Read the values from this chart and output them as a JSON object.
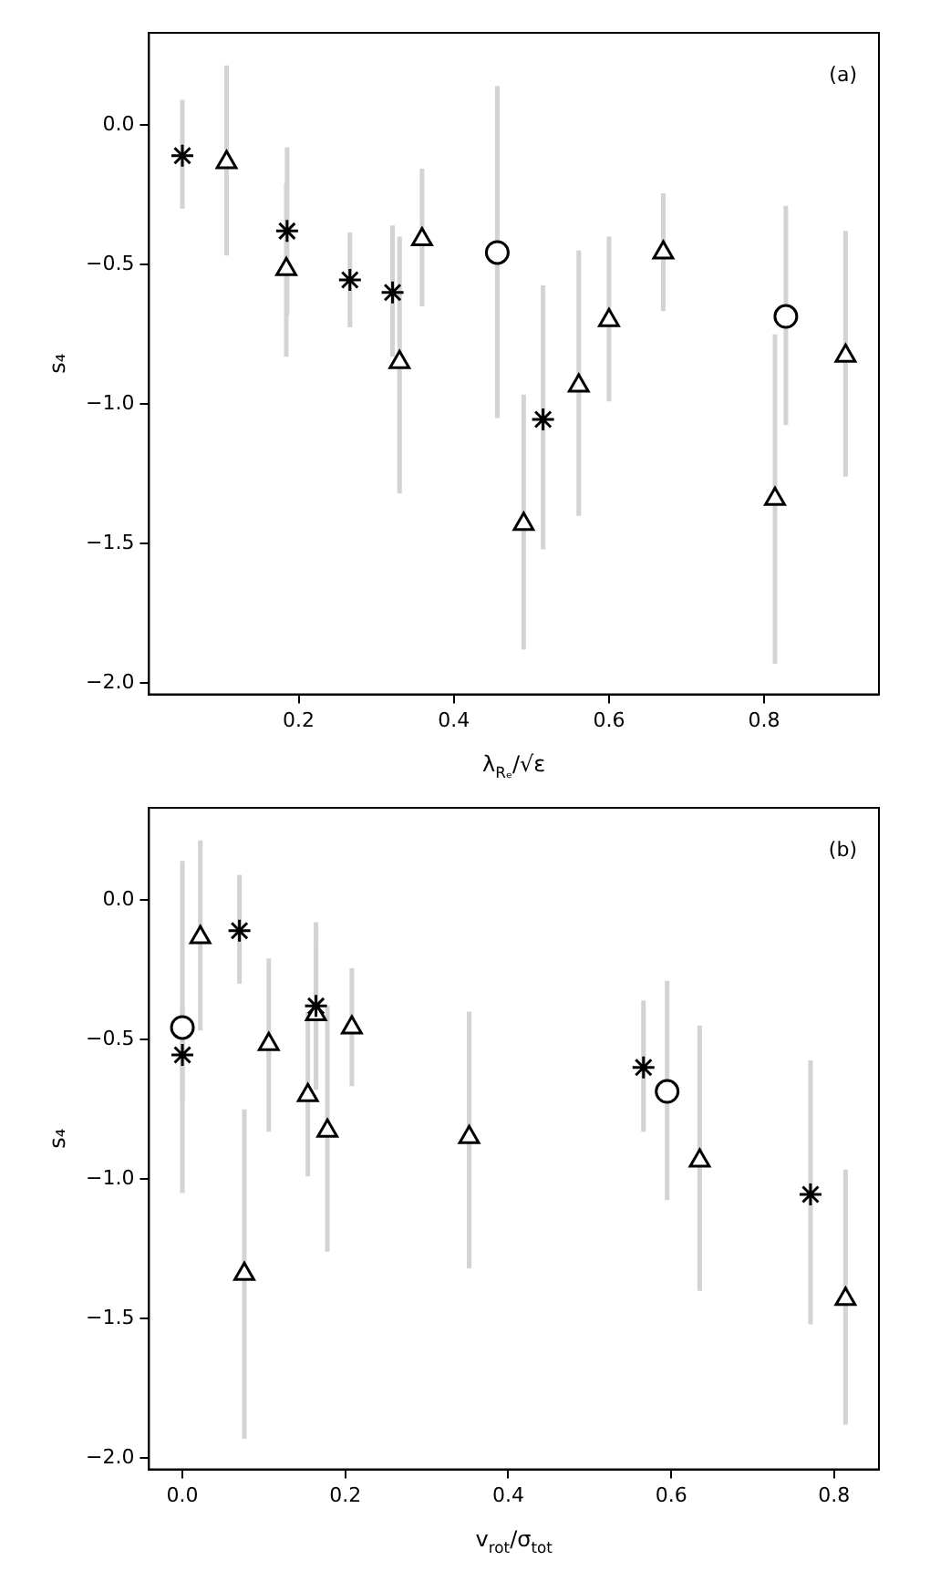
{
  "chart_data": [
    {
      "type": "scatter",
      "xlabel": "λ$_{Rₑ}$/√ε",
      "ylabel": "s₄",
      "annotations": [
        "(a)"
      ],
      "xlim": [
        0.007,
        0.948
      ],
      "xticks": [
        0.2,
        0.4,
        0.6,
        0.8
      ],
      "ylim": [
        -2.04,
        0.33
      ],
      "yticks": [
        {
          "value": -2.0,
          "label": "−2.0"
        },
        {
          "value": -1.5,
          "label": "−1.5"
        },
        {
          "value": -1.0,
          "label": "−1.0"
        },
        {
          "value": -0.5,
          "label": "−0.5"
        },
        {
          "value": 0.0,
          "label": "0.0"
        }
      ],
      "grid": false,
      "legend": false,
      "series": [
        {
          "marker": "cross",
          "color": "#000000",
          "x": [
            0.05,
            0.185,
            0.266,
            0.321,
            0.515
          ],
          "values": [
            -0.11,
            -0.38,
            -0.555,
            -0.6,
            -1.055
          ],
          "errors": [
            [
              -0.3,
              0.09
            ],
            [
              -0.68,
              -0.08
            ],
            [
              -0.725,
              -0.385
            ],
            [
              -0.83,
              -0.36
            ],
            [
              -1.52,
              -0.575
            ]
          ]
        },
        {
          "marker": "triangle",
          "color": "#000000",
          "x": [
            0.107,
            0.184,
            0.33,
            0.359,
            0.49,
            0.561,
            0.6,
            0.67,
            0.814,
            0.905
          ],
          "values": [
            -0.134,
            -0.517,
            -0.85,
            -0.41,
            -1.43,
            -0.934,
            -0.7,
            -0.457,
            -1.34,
            -0.827
          ],
          "errors": [
            [
              -0.468,
              0.213
            ],
            [
              -0.83,
              -0.21
            ],
            [
              -1.32,
              -0.4
            ],
            [
              -0.65,
              -0.157
            ],
            [
              -1.88,
              -0.966
            ],
            [
              -1.4,
              -0.45
            ],
            [
              -0.99,
              -0.4
            ],
            [
              -0.667,
              -0.245
            ],
            [
              -1.93,
              -0.75
            ],
            [
              -1.26,
              -0.38
            ]
          ]
        },
        {
          "marker": "circle",
          "color": "#000000",
          "x": [
            0.456,
            0.828
          ],
          "values": [
            -0.457,
            -0.686
          ],
          "errors": [
            [
              -1.05,
              0.14
            ],
            [
              -1.075,
              -0.29
            ]
          ]
        }
      ]
    },
    {
      "type": "scatter",
      "xlabel": "v$_{rot}$/σ$_{tot}$",
      "ylabel": "s₄",
      "annotations": [
        "(b)"
      ],
      "xlim": [
        -0.041,
        0.855
      ],
      "xticks": [
        {
          "value": 0.0,
          "label": "0.0"
        },
        0.2,
        0.4,
        0.6,
        0.8
      ],
      "ylim": [
        -2.04,
        0.33
      ],
      "yticks": [
        {
          "value": -2.0,
          "label": "−2.0"
        },
        {
          "value": -1.5,
          "label": "−1.5"
        },
        {
          "value": -1.0,
          "label": "−1.0"
        },
        {
          "value": -0.5,
          "label": "−0.5"
        },
        {
          "value": 0.0,
          "label": "0.0"
        }
      ],
      "grid": false,
      "legend": false,
      "series": [
        {
          "marker": "cross",
          "color": "#000000",
          "x": [
            0.07,
            0.164,
            0.0,
            0.566,
            0.771
          ],
          "values": [
            -0.11,
            -0.38,
            -0.555,
            -0.6,
            -1.055
          ],
          "errors": [
            [
              -0.3,
              0.09
            ],
            [
              -0.68,
              -0.08
            ],
            [
              -0.725,
              -0.385
            ],
            [
              -0.83,
              -0.36
            ],
            [
              -1.52,
              -0.575
            ]
          ]
        },
        {
          "marker": "triangle",
          "color": "#000000",
          "x": [
            0.022,
            0.106,
            0.352,
            0.164,
            0.814,
            0.635,
            0.154,
            0.208,
            0.076,
            0.178
          ],
          "values": [
            -0.134,
            -0.517,
            -0.85,
            -0.41,
            -1.43,
            -0.934,
            -0.7,
            -0.457,
            -1.34,
            -0.827
          ],
          "errors": [
            [
              -0.468,
              0.213
            ],
            [
              -0.83,
              -0.21
            ],
            [
              -1.32,
              -0.4
            ],
            [
              -0.65,
              -0.157
            ],
            [
              -1.88,
              -0.966
            ],
            [
              -1.4,
              -0.45
            ],
            [
              -0.99,
              -0.4
            ],
            [
              -0.667,
              -0.245
            ],
            [
              -1.93,
              -0.75
            ],
            [
              -1.26,
              -0.38
            ]
          ]
        },
        {
          "marker": "circle",
          "color": "#000000",
          "x": [
            0.0,
            0.595
          ],
          "values": [
            -0.457,
            -0.686
          ],
          "errors": [
            [
              -1.05,
              0.14
            ],
            [
              -1.075,
              -0.29
            ]
          ]
        }
      ]
    }
  ]
}
